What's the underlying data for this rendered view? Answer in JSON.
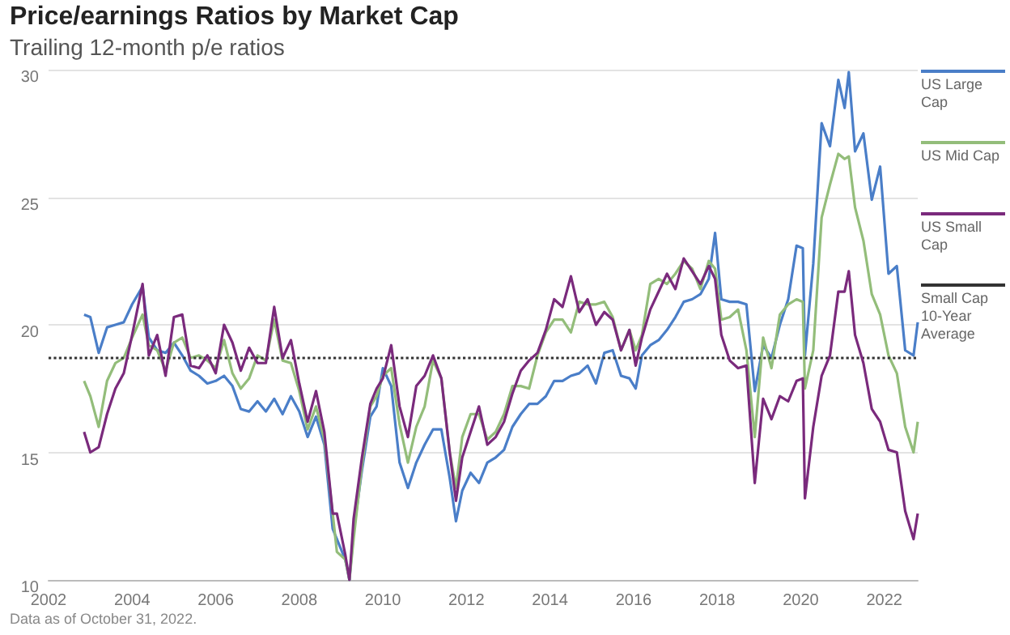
{
  "chart_data": {
    "type": "line",
    "title": "Price/earnings Ratios by Market Cap",
    "subtitle": "Trailing 12-month p/e ratios",
    "annotations": [
      "Data as of October 31, 2022."
    ],
    "x": [
      2002.85,
      2003.0,
      2003.2,
      2003.4,
      2003.6,
      2003.8,
      2004.0,
      2004.25,
      2004.4,
      2004.6,
      2004.8,
      2005.0,
      2005.2,
      2005.4,
      2005.6,
      2005.8,
      2006.0,
      2006.2,
      2006.4,
      2006.6,
      2006.8,
      2007.0,
      2007.2,
      2007.4,
      2007.6,
      2007.8,
      2008.0,
      2008.2,
      2008.4,
      2008.6,
      2008.8,
      2008.9,
      2009.1,
      2009.2,
      2009.3,
      2009.5,
      2009.7,
      2009.85,
      2010.0,
      2010.2,
      2010.4,
      2010.6,
      2010.8,
      2011.0,
      2011.2,
      2011.4,
      2011.6,
      2011.75,
      2011.9,
      2012.1,
      2012.3,
      2012.5,
      2012.7,
      2012.9,
      2013.1,
      2013.3,
      2013.5,
      2013.7,
      2013.9,
      2014.1,
      2014.3,
      2014.5,
      2014.7,
      2014.9,
      2015.1,
      2015.3,
      2015.5,
      2015.7,
      2015.9,
      2016.05,
      2016.2,
      2016.4,
      2016.6,
      2016.8,
      2017.0,
      2017.2,
      2017.4,
      2017.6,
      2017.8,
      2017.95,
      2018.1,
      2018.3,
      2018.5,
      2018.7,
      2018.9,
      2019.1,
      2019.3,
      2019.5,
      2019.7,
      2019.9,
      2020.05,
      2020.1,
      2020.3,
      2020.5,
      2020.7,
      2020.9,
      2021.05,
      2021.15,
      2021.3,
      2021.5,
      2021.7,
      2021.9,
      2022.1,
      2022.3,
      2022.5,
      2022.7,
      2022.8
    ],
    "series": [
      {
        "name": "US Large Cap",
        "color": "#4a7ec8",
        "values": [
          20.4,
          20.3,
          18.9,
          19.9,
          20.0,
          20.1,
          20.8,
          21.5,
          19.5,
          19.0,
          18.9,
          19.3,
          18.8,
          18.2,
          18.0,
          17.7,
          17.8,
          18.0,
          17.6,
          16.7,
          16.6,
          17.0,
          16.6,
          17.1,
          16.5,
          17.2,
          16.6,
          15.6,
          16.4,
          15.3,
          12.0,
          11.6,
          10.8,
          10.0,
          11.9,
          14.3,
          16.4,
          16.8,
          18.3,
          17.6,
          14.6,
          13.6,
          14.6,
          15.3,
          15.9,
          15.9,
          14.0,
          12.3,
          13.5,
          14.2,
          13.8,
          14.6,
          14.8,
          15.1,
          16.0,
          16.5,
          16.9,
          16.9,
          17.2,
          17.8,
          17.8,
          18.0,
          18.1,
          18.4,
          17.7,
          18.9,
          19.0,
          18.0,
          17.9,
          17.5,
          18.8,
          19.2,
          19.4,
          19.8,
          20.3,
          20.9,
          21.0,
          21.2,
          21.8,
          23.6,
          21.0,
          20.9,
          20.9,
          20.8,
          17.4,
          19.2,
          18.7,
          20.0,
          21.0,
          23.1,
          23.0,
          18.8,
          22.4,
          27.9,
          27.0,
          29.6,
          28.5,
          29.9,
          26.8,
          27.5,
          24.9,
          26.2,
          22.0,
          22.3,
          19.0,
          18.8,
          20.1
        ]
      },
      {
        "name": "US Mid Cap",
        "color": "#93bd7a",
        "values": [
          17.8,
          17.2,
          16.0,
          17.8,
          18.5,
          18.7,
          19.5,
          20.4,
          19.2,
          19.0,
          18.2,
          19.3,
          19.5,
          18.7,
          18.8,
          18.6,
          18.3,
          19.4,
          18.1,
          17.5,
          17.9,
          18.8,
          18.6,
          20.2,
          18.6,
          18.5,
          17.4,
          15.9,
          16.8,
          15.5,
          12.6,
          11.1,
          10.8,
          10.0,
          11.6,
          14.5,
          16.8,
          17.2,
          18.0,
          18.3,
          16.1,
          14.6,
          16.0,
          16.8,
          18.6,
          17.9,
          15.0,
          13.6,
          15.6,
          16.5,
          16.5,
          15.5,
          15.8,
          16.5,
          17.6,
          17.6,
          17.5,
          18.8,
          19.7,
          20.2,
          20.2,
          19.7,
          20.9,
          20.8,
          20.8,
          20.9,
          20.3,
          19.0,
          19.8,
          19.0,
          19.6,
          21.6,
          21.8,
          21.6,
          22.0,
          22.5,
          22.2,
          21.4,
          22.5,
          22.2,
          20.2,
          20.3,
          20.6,
          19.0,
          15.6,
          19.5,
          18.3,
          20.4,
          20.8,
          21.0,
          20.9,
          17.5,
          19.0,
          24.2,
          25.5,
          26.7,
          26.5,
          26.6,
          24.6,
          23.3,
          21.2,
          20.4,
          18.8,
          18.1,
          16.0,
          15.0,
          16.2
        ]
      },
      {
        "name": "US Small Cap",
        "color": "#7a2a7c",
        "values": [
          15.8,
          15.0,
          15.2,
          16.5,
          17.5,
          18.1,
          19.6,
          21.6,
          18.8,
          19.6,
          18.0,
          20.3,
          20.4,
          18.4,
          18.3,
          18.8,
          18.1,
          20.0,
          19.3,
          18.2,
          19.1,
          18.5,
          18.5,
          20.7,
          18.7,
          19.4,
          17.7,
          16.2,
          17.4,
          15.8,
          12.6,
          12.6,
          11.0,
          10.0,
          12.4,
          14.8,
          16.9,
          17.5,
          17.9,
          19.2,
          16.8,
          15.6,
          17.6,
          18.0,
          18.8,
          17.9,
          15.0,
          13.1,
          14.8,
          15.8,
          16.8,
          15.3,
          15.6,
          16.2,
          17.3,
          18.2,
          18.6,
          18.9,
          19.8,
          21.0,
          20.7,
          21.9,
          20.5,
          21.0,
          20.0,
          20.5,
          20.2,
          19.0,
          19.8,
          18.4,
          19.5,
          20.6,
          21.3,
          22.0,
          21.4,
          22.6,
          22.1,
          21.6,
          22.3,
          21.8,
          19.6,
          18.6,
          18.3,
          18.4,
          13.8,
          17.1,
          16.3,
          17.2,
          17.0,
          17.8,
          17.9,
          13.2,
          16.0,
          18.0,
          18.8,
          21.3,
          21.3,
          22.1,
          19.6,
          18.5,
          16.7,
          16.2,
          15.1,
          15.0,
          12.7,
          11.6,
          12.6
        ]
      }
    ],
    "ref_lines": [
      {
        "axis": "y",
        "value": 18.7,
        "label": "Small Cap 10-Year Average",
        "color": "#333333",
        "line_style": "dotted"
      }
    ],
    "xlim": [
      2002,
      2022.8
    ],
    "xticks": [
      2002,
      2004,
      2006,
      2008,
      2010,
      2012,
      2014,
      2016,
      2018,
      2020,
      2022
    ],
    "ylim": [
      10,
      30
    ],
    "yticks": [
      10,
      15,
      20,
      25,
      30
    ],
    "grid": "y",
    "legend": "right",
    "marker": "none",
    "line_style": "solid"
  }
}
